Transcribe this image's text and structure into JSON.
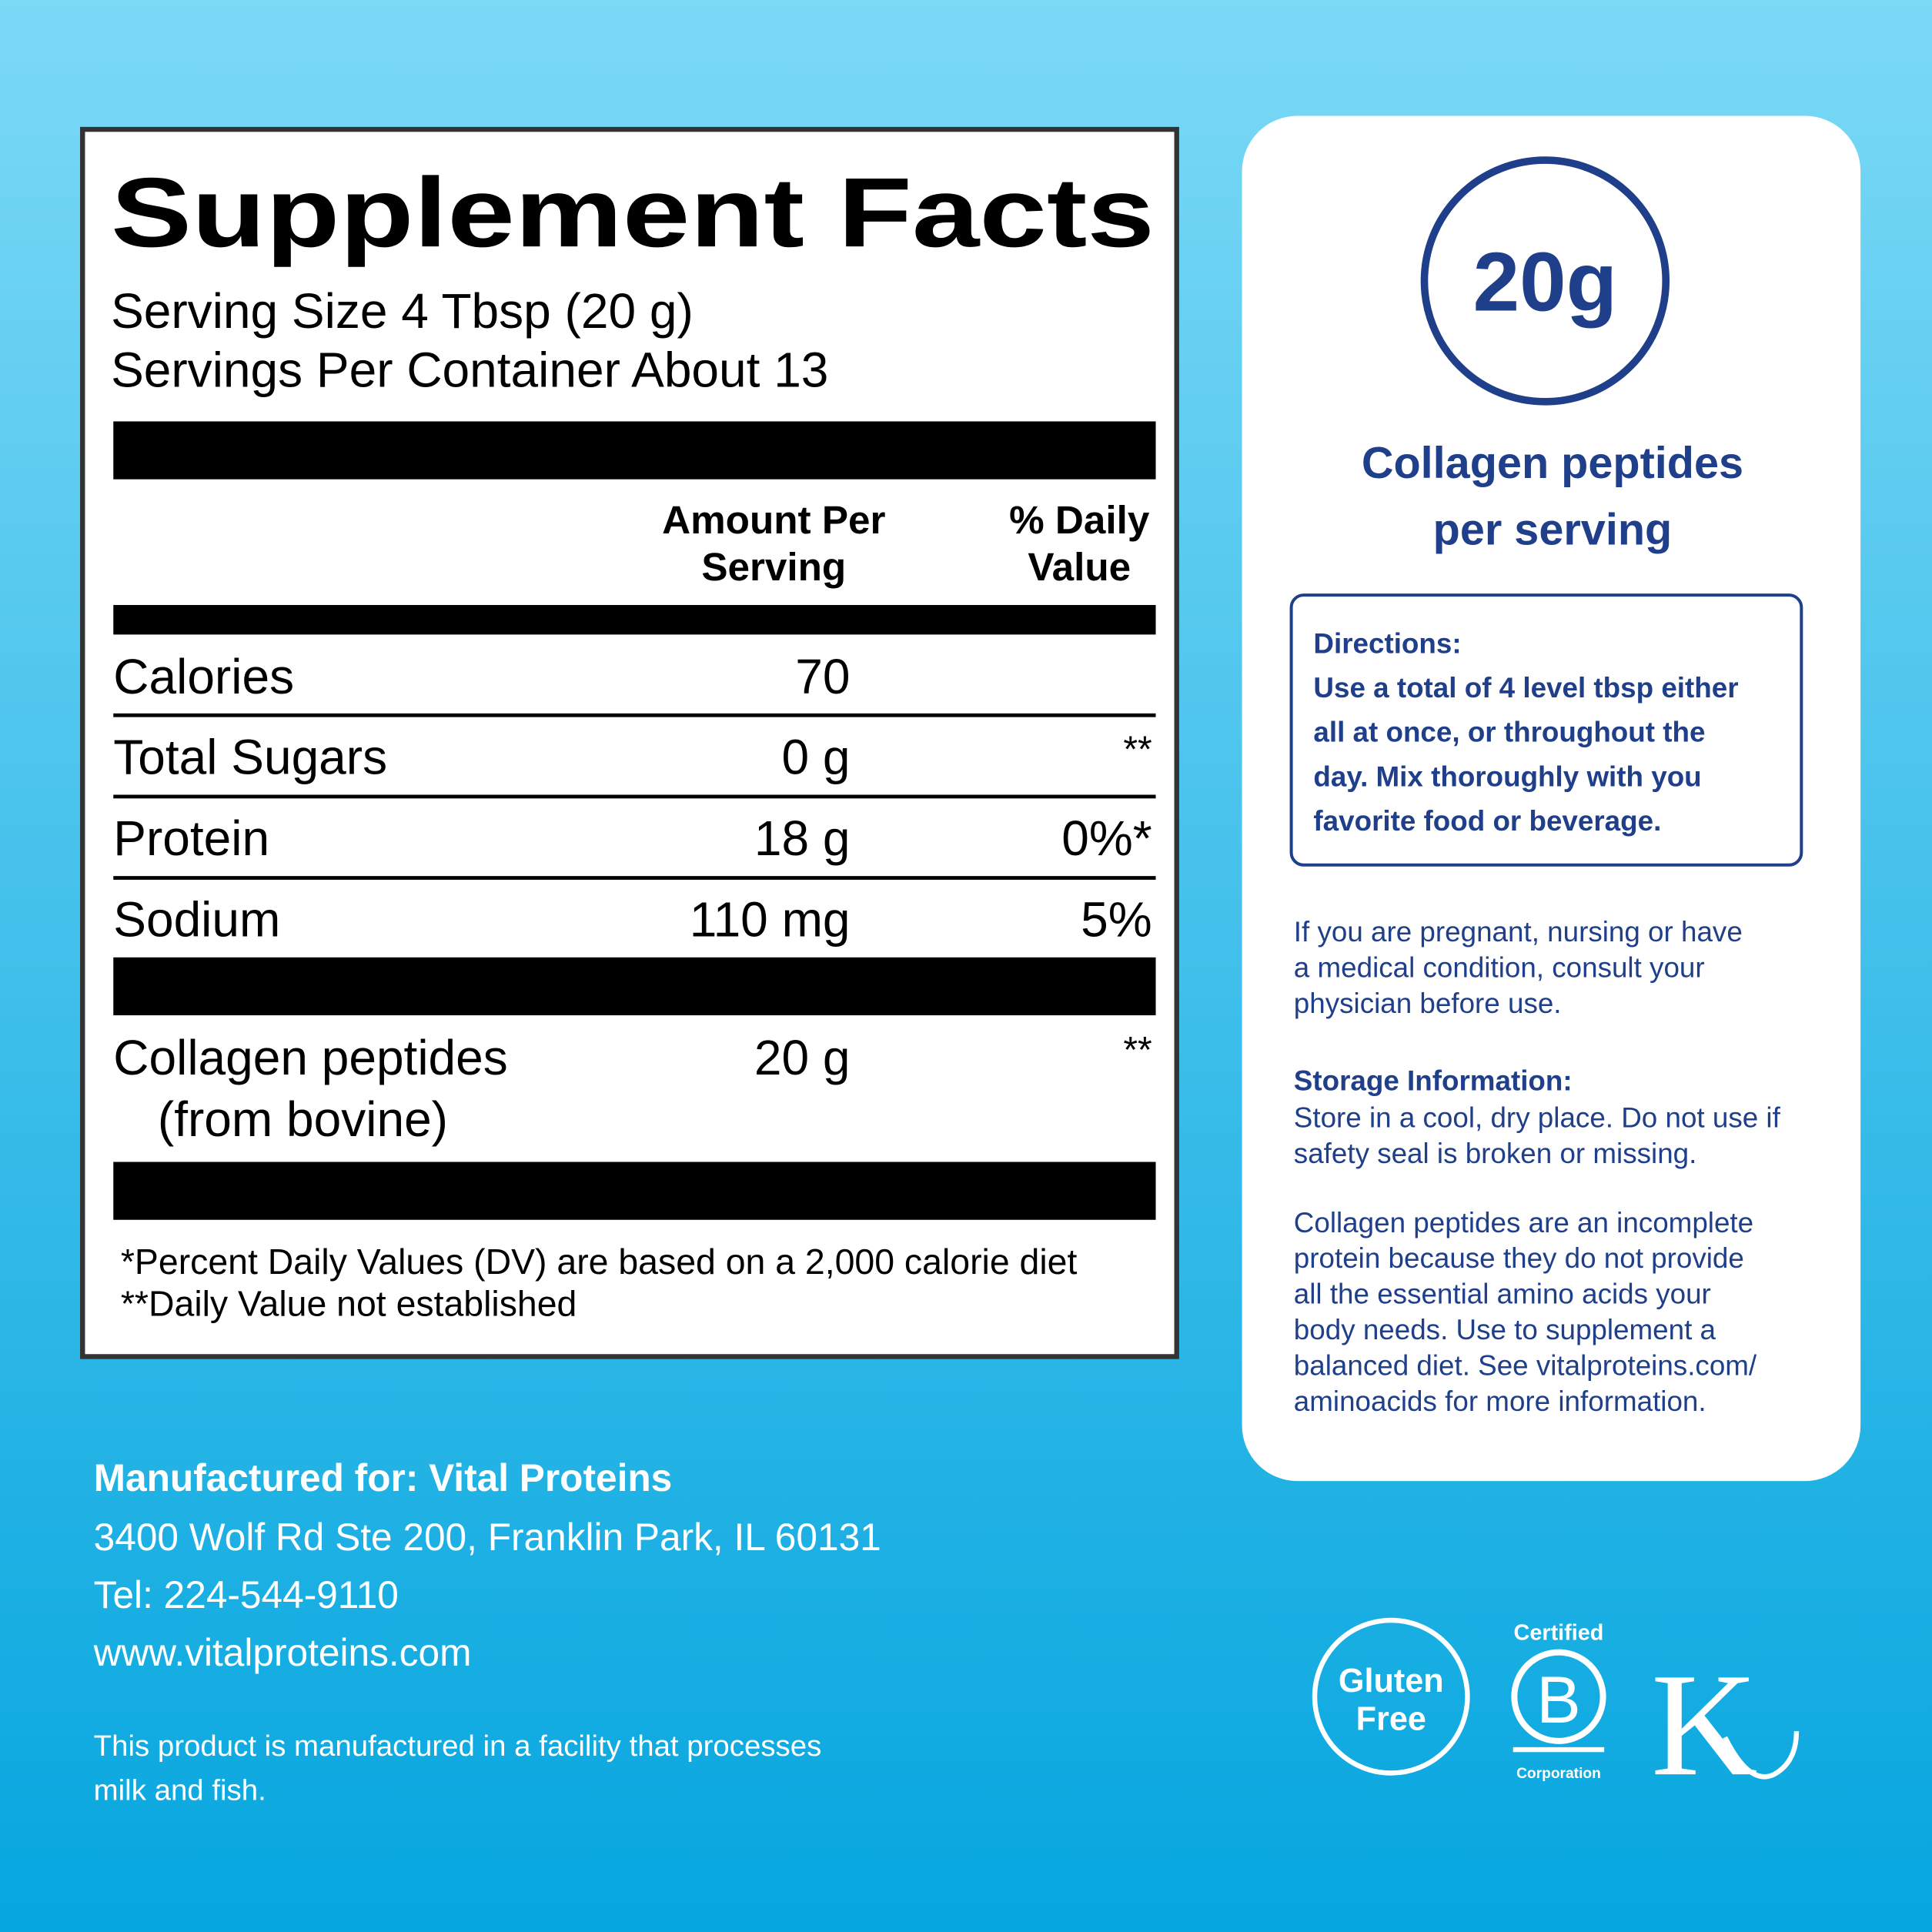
{
  "supplement_facts": {
    "title": "Supplement Facts",
    "serving_size": "Serving Size 4 Tbsp (20 g)",
    "servings_per_container": "Servings Per Container About 13",
    "column_headers": {
      "amount": [
        "Amount Per",
        "Serving"
      ],
      "daily_value": [
        "% Daily",
        "Value"
      ]
    },
    "rows": [
      {
        "name": [
          "Calories"
        ],
        "amount": "70"
      },
      {
        "name": [
          "Total Sugars"
        ],
        "amount": "0 g",
        "daily_value": "**"
      },
      {
        "name": [
          "Protein"
        ],
        "amount": "18 g",
        "daily_value": "0%*"
      },
      {
        "name": [
          "Sodium"
        ],
        "amount": "110 mg",
        "daily_value": "5%"
      },
      {
        "name": [
          "Collagen peptides",
          "(from bovine)"
        ],
        "amount": "20 g",
        "daily_value": "**"
      }
    ],
    "footnotes": [
      "*Percent Daily Values (DV) are based on a 2,000 calorie diet",
      "**Daily Value not established"
    ]
  },
  "highlight": {
    "amount": "20g",
    "caption": [
      "Collagen peptides",
      "per serving"
    ]
  },
  "directions": {
    "heading": "Directions:",
    "lines": [
      "Use a total of 4 level tbsp either",
      "all at once, or throughout the",
      "day. Mix thoroughly with you",
      "favorite food or beverage."
    ]
  },
  "warning": [
    "If you are pregnant, nursing or have",
    "a medical condition, consult your",
    "physician before use."
  ],
  "storage": {
    "heading": "Storage Information:",
    "lines": [
      "Store in a cool, dry place. Do not use if",
      "safety seal is broken or missing."
    ]
  },
  "note": [
    "Collagen peptides are an incomplete",
    "protein because they do not provide",
    "all the essential amino acids your",
    "body needs. Use to supplement a",
    "balanced diet. See vitalproteins.com/",
    "aminoacids for more information."
  ],
  "manufacturer": {
    "heading": "Manufactured for: Vital Proteins",
    "lines": [
      "3400 Wolf Rd Ste 200, Franklin Park, IL 60131",
      "Tel: 224-544-9110",
      "www.vitalproteins.com"
    ],
    "allergen": [
      "This product is manufactured in a facility that processes",
      "milk and fish."
    ]
  },
  "badges": {
    "gluten_free": [
      "Gluten",
      "Free"
    ],
    "b_corp": {
      "top": "Certified",
      "letter": "B",
      "bottom": "Corporation"
    },
    "kosher": "K"
  }
}
